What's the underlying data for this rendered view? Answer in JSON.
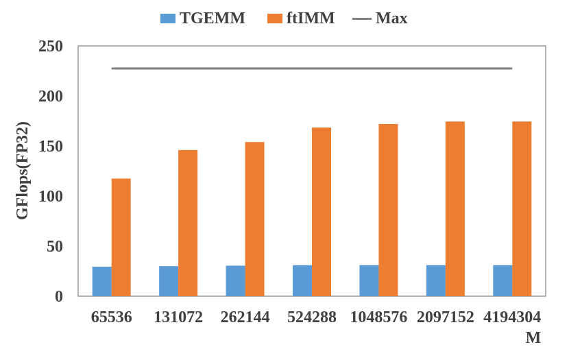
{
  "chart_data": {
    "type": "bar",
    "categories": [
      "65536",
      "131072",
      "262144",
      "524288",
      "1048576",
      "2097152",
      "4194304"
    ],
    "xlabel": "M",
    "ylabel": "GFlops(FP32)",
    "ylim": [
      0,
      250
    ],
    "yticks": [
      0,
      50,
      100,
      150,
      200,
      250
    ],
    "grid": false,
    "legend_position": "top",
    "series": [
      {
        "name": "TGEMM",
        "color": "#5b9bd5",
        "values": [
          29.5,
          30,
          30.5,
          31,
          31,
          31,
          31
        ]
      },
      {
        "name": "ftIMM",
        "color": "#ed7d31",
        "values": [
          117.5,
          146,
          154,
          168.5,
          172,
          174.5,
          174.5
        ]
      }
    ],
    "max_line": {
      "name": "Max",
      "color": "#808080",
      "value": 227.5
    }
  }
}
